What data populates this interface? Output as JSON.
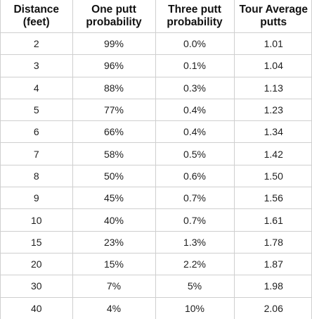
{
  "table": {
    "headers": [
      {
        "line1": "Distance",
        "line2": "(feet)"
      },
      {
        "line1": "One putt",
        "line2": "probability"
      },
      {
        "line1": "Three putt",
        "line2": "probability"
      },
      {
        "line1": "Tour Average",
        "line2": "putts"
      }
    ],
    "rows": [
      [
        "2",
        "99%",
        "0.0%",
        "1.01"
      ],
      [
        "3",
        "96%",
        "0.1%",
        "1.04"
      ],
      [
        "4",
        "88%",
        "0.3%",
        "1.13"
      ],
      [
        "5",
        "77%",
        "0.4%",
        "1.23"
      ],
      [
        "6",
        "66%",
        "0.4%",
        "1.34"
      ],
      [
        "7",
        "58%",
        "0.5%",
        "1.42"
      ],
      [
        "8",
        "50%",
        "0.6%",
        "1.50"
      ],
      [
        "9",
        "45%",
        "0.7%",
        "1.56"
      ],
      [
        "10",
        "40%",
        "0.7%",
        "1.61"
      ],
      [
        "15",
        "23%",
        "1.3%",
        "1.78"
      ],
      [
        "20",
        "15%",
        "2.2%",
        "1.87"
      ],
      [
        "30",
        "7%",
        "5%",
        "1.98"
      ],
      [
        "40",
        "4%",
        "10%",
        "2.06"
      ]
    ]
  }
}
